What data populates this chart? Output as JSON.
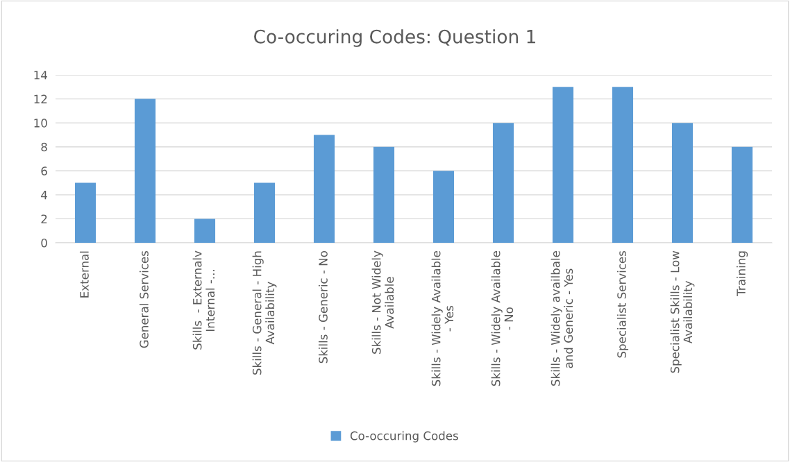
{
  "chart_data": {
    "type": "bar",
    "title": "Co-occuring Codes: Question 1",
    "categories": [
      "External",
      "General Services",
      "Skills  - Externalv\nInternal -...",
      "Skills - General - High\nAvailability",
      "Skills - Generic - No",
      "Skills - Not Widely\nAvailable",
      "Skills - Widely Available\n- Yes",
      "Skills - Widely Available\n- No",
      "Skills - Widely availbale\nand Generic - Yes",
      "Specialist Services",
      "Specialist Skills - Low\nAvailability",
      "Training"
    ],
    "series": [
      {
        "name": "Co-occuring Codes",
        "color": "#5b9bd5",
        "values": [
          5,
          12,
          2,
          5,
          9,
          8,
          6,
          10,
          13,
          13,
          10,
          8
        ]
      }
    ],
    "ylim": [
      0,
      14
    ],
    "yticks": [
      0,
      2,
      4,
      6,
      8,
      10,
      12,
      14
    ],
    "grid": "y",
    "legend": "bottom"
  }
}
